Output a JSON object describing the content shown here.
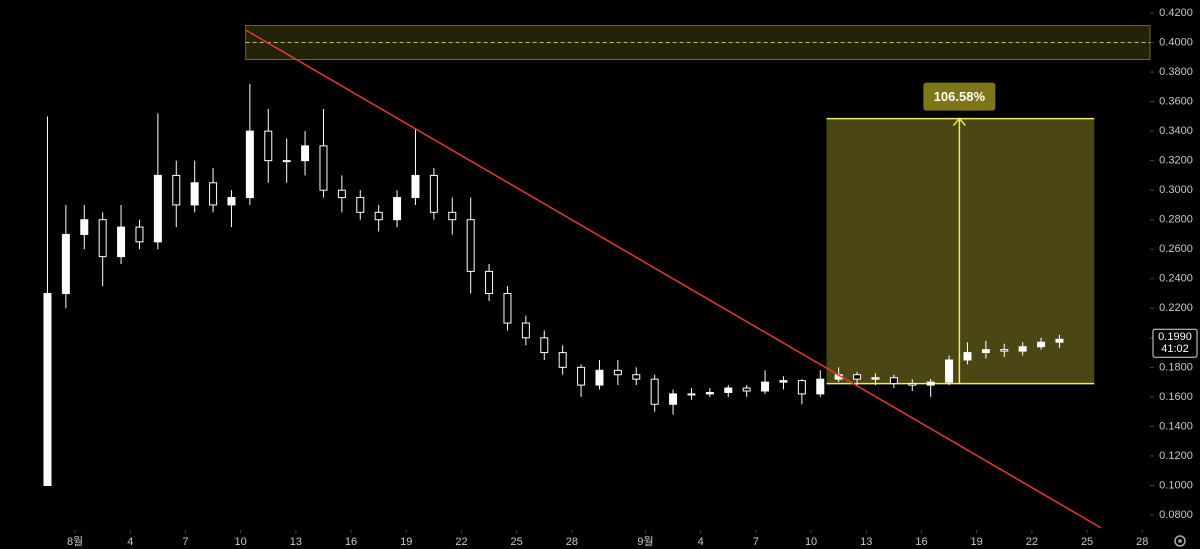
{
  "chart_data": {
    "type": "candlestick",
    "x": [
      -0.5,
      0.5,
      1.5,
      2.5,
      3.5,
      4.5,
      5.5,
      6.5,
      7.5,
      8.5,
      9.5,
      10.5,
      11.5,
      12.5,
      13.5,
      14.5,
      15.5,
      16.5,
      17.5,
      18.5,
      19.5,
      20.5,
      21.5,
      22.5,
      23.5,
      24.5,
      25.5,
      26.5,
      27.5,
      28.5,
      29.5,
      30.5,
      31.5,
      32.5,
      33.5,
      34.5,
      35.5,
      36.5,
      37.5,
      38.5,
      39.5,
      40.5,
      41.5,
      42.5,
      43.5,
      44.5,
      45.5,
      46.5,
      47.5,
      48.5,
      49.5,
      50.5,
      51.5,
      52.5,
      53.5,
      54.5
    ],
    "open": [
      0.1,
      0.23,
      0.27,
      0.28,
      0.255,
      0.275,
      0.265,
      0.31,
      0.29,
      0.305,
      0.29,
      0.295,
      0.34,
      0.32,
      0.32,
      0.33,
      0.3,
      0.295,
      0.285,
      0.28,
      0.295,
      0.31,
      0.285,
      0.28,
      0.245,
      0.23,
      0.21,
      0.2,
      0.19,
      0.18,
      0.168,
      0.178,
      0.175,
      0.172,
      0.155,
      0.162,
      0.162,
      0.163,
      0.166,
      0.164,
      0.17,
      0.171,
      0.162,
      0.172,
      0.175,
      0.172,
      0.173,
      0.169,
      0.168,
      0.17,
      0.185,
      0.19,
      0.192,
      0.191,
      0.194,
      0.197
    ],
    "high": [
      0.35,
      0.29,
      0.29,
      0.285,
      0.29,
      0.28,
      0.352,
      0.32,
      0.32,
      0.315,
      0.3,
      0.372,
      0.355,
      0.335,
      0.34,
      0.355,
      0.31,
      0.3,
      0.29,
      0.3,
      0.342,
      0.315,
      0.295,
      0.295,
      0.25,
      0.235,
      0.215,
      0.205,
      0.195,
      0.182,
      0.185,
      0.185,
      0.18,
      0.175,
      0.165,
      0.166,
      0.166,
      0.168,
      0.168,
      0.178,
      0.174,
      0.172,
      0.178,
      0.18,
      0.177,
      0.176,
      0.175,
      0.172,
      0.172,
      0.188,
      0.197,
      0.198,
      0.196,
      0.197,
      0.2,
      0.202
    ],
    "low": [
      0.1,
      0.22,
      0.26,
      0.235,
      0.25,
      0.26,
      0.26,
      0.275,
      0.285,
      0.285,
      0.275,
      0.29,
      0.305,
      0.305,
      0.31,
      0.295,
      0.285,
      0.28,
      0.272,
      0.275,
      0.29,
      0.28,
      0.27,
      0.23,
      0.225,
      0.205,
      0.195,
      0.185,
      0.175,
      0.16,
      0.165,
      0.168,
      0.168,
      0.15,
      0.148,
      0.158,
      0.16,
      0.16,
      0.16,
      0.162,
      0.165,
      0.155,
      0.16,
      0.17,
      0.168,
      0.168,
      0.166,
      0.164,
      0.16,
      0.168,
      0.182,
      0.186,
      0.187,
      0.188,
      0.192,
      0.193
    ],
    "close": [
      0.23,
      0.27,
      0.28,
      0.255,
      0.275,
      0.265,
      0.31,
      0.29,
      0.305,
      0.29,
      0.295,
      0.34,
      0.32,
      0.32,
      0.33,
      0.3,
      0.295,
      0.285,
      0.28,
      0.295,
      0.31,
      0.285,
      0.28,
      0.245,
      0.23,
      0.21,
      0.2,
      0.19,
      0.18,
      0.168,
      0.178,
      0.175,
      0.172,
      0.155,
      0.162,
      0.162,
      0.163,
      0.166,
      0.164,
      0.17,
      0.171,
      0.162,
      0.172,
      0.175,
      0.172,
      0.173,
      0.169,
      0.168,
      0.17,
      0.185,
      0.19,
      0.192,
      0.191,
      0.194,
      0.197,
      0.199
    ],
    "up_color": "#ffffff",
    "down_color": "#000000",
    "xlim": [
      -3.08,
      59.42
    ],
    "xticks": [
      {
        "value": 1,
        "label": "8월"
      },
      4,
      7,
      10,
      13,
      16,
      19,
      22,
      25,
      28,
      {
        "value": 32,
        "label": "9월"
      },
      {
        "value": 35,
        "label": "4"
      },
      {
        "value": 38,
        "label": "7"
      },
      {
        "value": 41,
        "label": "10"
      },
      {
        "value": 44,
        "label": "13"
      },
      {
        "value": 47,
        "label": "16"
      },
      {
        "value": 50,
        "label": "19"
      },
      {
        "value": 53,
        "label": "22"
      },
      {
        "value": 56,
        "label": "25"
      },
      {
        "value": 59,
        "label": "28"
      }
    ],
    "ylim": [
      0.08,
      0.42
    ],
    "yticks": [
      {
        "value": 0.08,
        "label": "0.0800"
      },
      {
        "value": 0.1,
        "label": "0.1000"
      },
      {
        "value": 0.12,
        "label": "0.1200"
      },
      {
        "value": 0.14,
        "label": "0.1400"
      },
      {
        "value": 0.16,
        "label": "0.1600"
      },
      {
        "value": 0.18,
        "label": "0.1800"
      },
      {
        "value": 0.2,
        "label": "0.2000"
      },
      {
        "value": 0.22,
        "label": "0.2200"
      },
      {
        "value": 0.24,
        "label": "0.2400"
      },
      {
        "value": 0.26,
        "label": "0.2600"
      },
      {
        "value": 0.28,
        "label": "0.2800"
      },
      {
        "value": 0.3,
        "label": "0.3000"
      },
      {
        "value": 0.32,
        "label": "0.3200"
      },
      {
        "value": 0.34,
        "label": "0.3400"
      },
      {
        "value": 0.36,
        "label": "0.3600"
      },
      {
        "value": 0.38,
        "label": "0.3800"
      },
      {
        "value": 0.4,
        "label": "0.4000"
      },
      {
        "value": 0.42,
        "label": "0.4200"
      }
    ],
    "zone": {
      "x_start": 10.27,
      "low": 0.3885,
      "high": 0.4115,
      "mid": 0.4
    },
    "trendline": {
      "x": [
        10.27,
        56.76
      ],
      "y": [
        0.4085,
        0.0713
      ],
      "color": "#e53935"
    },
    "measure": {
      "x": [
        41.84,
        56.39
      ],
      "arrow_x": 49.06,
      "low": 0.169,
      "high": 0.3485,
      "label": "106.58%"
    },
    "last_price": {
      "value": 0.199,
      "label": "0.1990"
    },
    "countdown": "41:02"
  }
}
